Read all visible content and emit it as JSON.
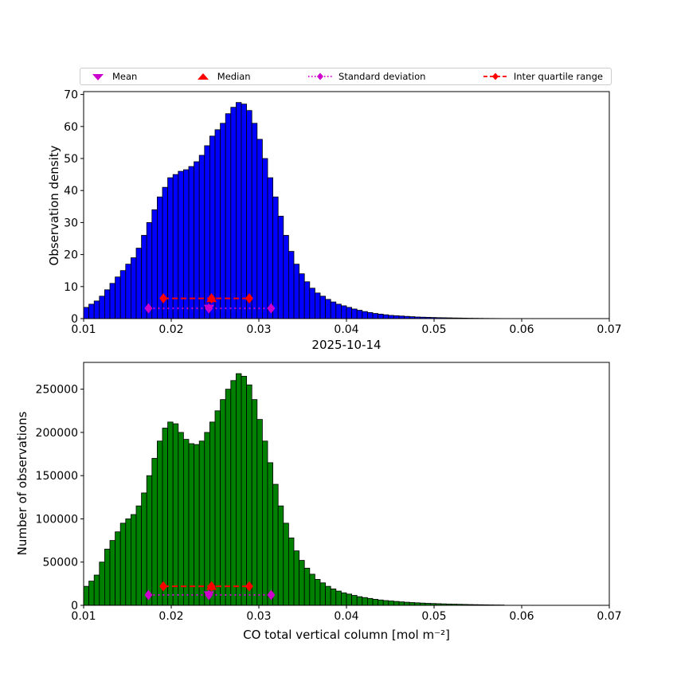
{
  "legend": {
    "items": [
      {
        "label": "Mean",
        "marker": "triangle-down",
        "color": "#cc00cc"
      },
      {
        "label": "Median",
        "marker": "triangle-up",
        "color": "#ff0000"
      },
      {
        "label": "Standard deviation",
        "marker": "diamond-dotted-line",
        "color": "#cc00cc"
      },
      {
        "label": "Inter quartile range",
        "marker": "diamond-dashed-line",
        "color": "#ff0000"
      }
    ]
  },
  "chart_data": [
    {
      "type": "bar",
      "title": "",
      "ylabel": "Observation density",
      "xlabel": "",
      "xlim": [
        0.01,
        0.07
      ],
      "ylim": [
        0,
        70.9
      ],
      "xticks": [
        0.01,
        0.02,
        0.03,
        0.04,
        0.05,
        0.06,
        0.07
      ],
      "yticks": [
        0,
        10,
        20,
        30,
        40,
        50,
        60,
        70
      ],
      "bar_color": "#0000ff",
      "edge_color": "#000000",
      "bin_start": 0.01,
      "bin_width": 0.0006,
      "values": [
        3.5,
        4.5,
        5.5,
        7,
        9,
        11,
        13,
        15,
        17,
        19,
        22,
        26,
        30,
        34,
        38,
        41,
        44,
        45,
        46,
        46.5,
        47.5,
        49,
        51,
        54,
        57,
        59,
        61,
        64,
        66,
        67.5,
        67,
        65,
        61,
        56,
        50,
        44,
        38,
        32,
        26,
        21,
        17,
        14,
        11.5,
        9.5,
        8,
        7,
        6,
        5.2,
        4.5,
        4,
        3.5,
        3,
        2.6,
        2.2,
        1.9,
        1.6,
        1.4,
        1.2,
        1.0,
        0.9,
        0.8,
        0.7,
        0.6,
        0.5,
        0.45,
        0.4,
        0.35,
        0.3,
        0.27,
        0.24,
        0.2,
        0.18,
        0.15,
        0.12,
        0.1,
        0.08,
        0.06,
        0.05,
        0.04,
        0.03
      ],
      "markers": {
        "mean": {
          "x": 0.0243,
          "y": 3.2,
          "color": "#cc00cc"
        },
        "median": {
          "x": 0.0246,
          "y": 6.3,
          "color": "#ff0000"
        },
        "std": {
          "x1": 0.0174,
          "x2": 0.0314,
          "y": 3.2,
          "color": "#cc00cc",
          "style": "dotted"
        },
        "iqr": {
          "x1": 0.0191,
          "x2": 0.0289,
          "y": 6.3,
          "color": "#ff0000",
          "style": "dashed"
        }
      }
    },
    {
      "type": "bar",
      "title": "2025-10-14",
      "ylabel": "Number of observations",
      "xlabel": "CO total vertical column [mol m⁻²]",
      "xlim": [
        0.01,
        0.07
      ],
      "ylim": [
        0,
        281000
      ],
      "xticks": [
        0.01,
        0.02,
        0.03,
        0.04,
        0.05,
        0.06,
        0.07
      ],
      "yticks": [
        0,
        50000,
        100000,
        150000,
        200000,
        250000
      ],
      "bar_color": "#008000",
      "edge_color": "#000000",
      "bin_start": 0.01,
      "bin_width": 0.0006,
      "values": [
        22000,
        28000,
        35000,
        50000,
        65000,
        75000,
        85000,
        95000,
        100000,
        105000,
        115000,
        130000,
        150000,
        170000,
        190000,
        205000,
        212000,
        210000,
        200000,
        192000,
        187000,
        186000,
        190000,
        200000,
        212000,
        225000,
        238000,
        250000,
        260000,
        268000,
        265000,
        255000,
        238000,
        215000,
        190000,
        165000,
        140000,
        115000,
        95000,
        78000,
        63000,
        52000,
        43000,
        36000,
        30000,
        26000,
        22000,
        19000,
        16500,
        14500,
        13000,
        11500,
        10000,
        9000,
        8000,
        7000,
        6200,
        5500,
        5000,
        4500,
        4000,
        3600,
        3200,
        2900,
        2600,
        2300,
        2100,
        1900,
        1700,
        1500,
        1350,
        1200,
        1050,
        900,
        800,
        700,
        600,
        500,
        430,
        380
      ],
      "markers": {
        "mean": {
          "x": 0.0243,
          "y": 12000,
          "color": "#cc00cc"
        },
        "median": {
          "x": 0.0246,
          "y": 22000,
          "color": "#ff0000"
        },
        "std": {
          "x1": 0.0174,
          "x2": 0.0314,
          "y": 12000,
          "color": "#cc00cc",
          "style": "dotted"
        },
        "iqr": {
          "x1": 0.0191,
          "x2": 0.0289,
          "y": 22000,
          "color": "#ff0000",
          "style": "dashed"
        }
      }
    }
  ]
}
